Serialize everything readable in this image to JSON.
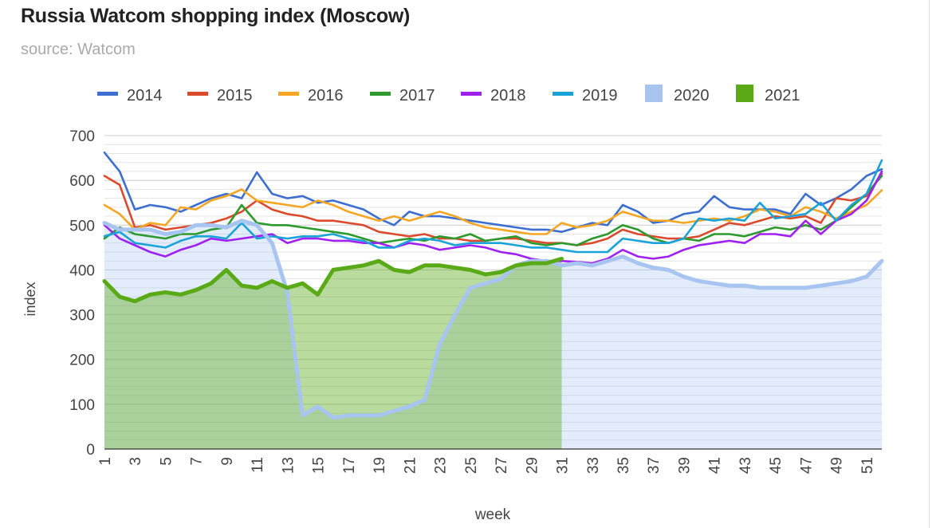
{
  "title": "Russia Watcom shopping index (Moscow)",
  "subtitle": "source: Watcom",
  "chart_data": {
    "type": "line",
    "xlabel": "week",
    "ylabel": "index",
    "ylim": [
      0,
      700
    ],
    "yticks": [
      0,
      100,
      200,
      300,
      400,
      500,
      600,
      700
    ],
    "xlim": [
      1,
      52
    ],
    "xticks": [
      1,
      3,
      5,
      7,
      9,
      11,
      13,
      15,
      17,
      19,
      21,
      23,
      25,
      27,
      29,
      31,
      33,
      35,
      37,
      39,
      41,
      43,
      45,
      47,
      49,
      51
    ],
    "grid": true,
    "legend_position": "top",
    "series": [
      {
        "name": "2014",
        "color": "#3c6fd0",
        "style": "line",
        "x": [
          1,
          2,
          3,
          4,
          5,
          6,
          7,
          8,
          9,
          10,
          11,
          12,
          13,
          14,
          15,
          16,
          17,
          18,
          19,
          20,
          21,
          22,
          23,
          24,
          25,
          26,
          27,
          28,
          29,
          30,
          31,
          32,
          33,
          34,
          35,
          36,
          37,
          38,
          39,
          40,
          41,
          42,
          43,
          44,
          45,
          46,
          47,
          48,
          49,
          50,
          51,
          52
        ],
        "y": [
          662,
          620,
          535,
          545,
          540,
          530,
          545,
          560,
          570,
          560,
          618,
          570,
          560,
          565,
          550,
          555,
          545,
          535,
          515,
          500,
          530,
          520,
          520,
          515,
          510,
          505,
          500,
          495,
          490,
          490,
          485,
          495,
          505,
          500,
          545,
          530,
          505,
          510,
          525,
          530,
          565,
          540,
          535,
          535,
          535,
          525,
          570,
          545,
          560,
          580,
          610,
          625
        ]
      },
      {
        "name": "2015",
        "color": "#dc4a2e",
        "style": "line",
        "x": [
          1,
          2,
          3,
          4,
          5,
          6,
          7,
          8,
          9,
          10,
          11,
          12,
          13,
          14,
          15,
          16,
          17,
          18,
          19,
          20,
          21,
          22,
          23,
          24,
          25,
          26,
          27,
          28,
          29,
          30,
          31,
          32,
          33,
          34,
          35,
          36,
          37,
          38,
          39,
          40,
          41,
          42,
          43,
          44,
          45,
          46,
          47,
          48,
          49,
          50,
          51,
          52
        ],
        "y": [
          610,
          590,
          495,
          500,
          490,
          495,
          500,
          505,
          515,
          530,
          555,
          535,
          525,
          520,
          510,
          510,
          505,
          500,
          485,
          480,
          475,
          480,
          470,
          470,
          465,
          465,
          470,
          470,
          465,
          460,
          460,
          455,
          460,
          470,
          490,
          480,
          475,
          470,
          470,
          475,
          490,
          505,
          500,
          510,
          520,
          515,
          520,
          505,
          560,
          555,
          565,
          615
        ]
      },
      {
        "name": "2016",
        "color": "#f5a623",
        "style": "line",
        "x": [
          1,
          2,
          3,
          4,
          5,
          6,
          7,
          8,
          9,
          10,
          11,
          12,
          13,
          14,
          15,
          16,
          17,
          18,
          19,
          20,
          21,
          22,
          23,
          24,
          25,
          26,
          27,
          28,
          29,
          30,
          31,
          32,
          33,
          34,
          35,
          36,
          37,
          38,
          39,
          40,
          41,
          42,
          43,
          44,
          45,
          46,
          47,
          48,
          49,
          50,
          51,
          52
        ],
        "y": [
          545,
          525,
          490,
          505,
          500,
          540,
          535,
          555,
          565,
          580,
          555,
          550,
          545,
          540,
          555,
          545,
          530,
          520,
          510,
          520,
          510,
          520,
          530,
          520,
          505,
          495,
          490,
          485,
          480,
          480,
          505,
          495,
          500,
          510,
          530,
          520,
          510,
          510,
          505,
          510,
          515,
          510,
          520,
          535,
          530,
          520,
          540,
          530,
          515,
          530,
          545,
          578
        ]
      },
      {
        "name": "2017",
        "color": "#2c9a2c",
        "style": "line",
        "x": [
          1,
          2,
          3,
          4,
          5,
          6,
          7,
          8,
          9,
          10,
          11,
          12,
          13,
          14,
          15,
          16,
          17,
          18,
          19,
          20,
          21,
          22,
          23,
          24,
          25,
          26,
          27,
          28,
          29,
          30,
          31,
          32,
          33,
          34,
          35,
          36,
          37,
          38,
          39,
          40,
          41,
          42,
          43,
          44,
          45,
          46,
          47,
          48,
          49,
          50,
          51,
          52
        ],
        "y": [
          470,
          495,
          480,
          475,
          470,
          480,
          480,
          490,
          495,
          545,
          505,
          500,
          500,
          495,
          490,
          485,
          480,
          470,
          460,
          465,
          470,
          465,
          475,
          470,
          480,
          465,
          470,
          475,
          460,
          455,
          460,
          455,
          470,
          480,
          500,
          490,
          470,
          460,
          470,
          465,
          480,
          480,
          475,
          485,
          495,
          490,
          500,
          490,
          510,
          540,
          570,
          610
        ]
      },
      {
        "name": "2018",
        "color": "#a020f0",
        "style": "line",
        "x": [
          1,
          2,
          3,
          4,
          5,
          6,
          7,
          8,
          9,
          10,
          11,
          12,
          13,
          14,
          15,
          16,
          17,
          18,
          19,
          20,
          21,
          22,
          23,
          24,
          25,
          26,
          27,
          28,
          29,
          30,
          31,
          32,
          33,
          34,
          35,
          36,
          37,
          38,
          39,
          40,
          41,
          42,
          43,
          44,
          45,
          46,
          47,
          48,
          49,
          50,
          51,
          52
        ],
        "y": [
          500,
          470,
          455,
          440,
          430,
          445,
          455,
          470,
          465,
          470,
          475,
          480,
          460,
          470,
          470,
          465,
          465,
          460,
          460,
          450,
          460,
          455,
          445,
          450,
          455,
          450,
          440,
          435,
          425,
          420,
          420,
          418,
          415,
          425,
          445,
          430,
          425,
          430,
          445,
          455,
          460,
          465,
          460,
          480,
          480,
          475,
          510,
          480,
          510,
          525,
          555,
          620
        ]
      },
      {
        "name": "2019",
        "color": "#1aa3d8",
        "style": "line",
        "x": [
          1,
          2,
          3,
          4,
          5,
          6,
          7,
          8,
          9,
          10,
          11,
          12,
          13,
          14,
          15,
          16,
          17,
          18,
          19,
          20,
          21,
          22,
          23,
          24,
          25,
          26,
          27,
          28,
          29,
          30,
          31,
          32,
          33,
          34,
          35,
          36,
          37,
          38,
          39,
          40,
          41,
          42,
          43,
          44,
          45,
          46,
          47,
          48,
          49,
          50,
          51,
          52
        ],
        "y": [
          475,
          485,
          460,
          455,
          450,
          465,
          475,
          475,
          470,
          505,
          470,
          475,
          470,
          475,
          475,
          480,
          470,
          465,
          450,
          450,
          465,
          470,
          465,
          455,
          460,
          460,
          460,
          455,
          450,
          450,
          445,
          440,
          440,
          440,
          470,
          465,
          460,
          460,
          470,
          515,
          510,
          515,
          510,
          550,
          515,
          520,
          525,
          550,
          510,
          545,
          570,
          645
        ]
      },
      {
        "name": "2020",
        "color": "#a8c4f0",
        "style": "area",
        "x": [
          1,
          2,
          3,
          4,
          5,
          6,
          7,
          8,
          9,
          10,
          11,
          12,
          13,
          14,
          15,
          16,
          17,
          18,
          19,
          20,
          21,
          22,
          23,
          24,
          25,
          26,
          27,
          28,
          29,
          30,
          31,
          32,
          33,
          34,
          35,
          36,
          37,
          38,
          39,
          40,
          41,
          42,
          43,
          44,
          45,
          46,
          47,
          48,
          49,
          50,
          51,
          52
        ],
        "y": [
          505,
          490,
          490,
          490,
          480,
          485,
          500,
          500,
          495,
          510,
          500,
          460,
          350,
          75,
          95,
          70,
          75,
          75,
          75,
          85,
          95,
          110,
          235,
          300,
          360,
          370,
          380,
          410,
          420,
          420,
          410,
          415,
          410,
          420,
          430,
          415,
          405,
          400,
          385,
          375,
          370,
          365,
          365,
          360,
          360,
          360,
          360,
          365,
          370,
          375,
          385,
          420
        ]
      },
      {
        "name": "2021",
        "color": "#5aaa18",
        "style": "area",
        "x": [
          1,
          2,
          3,
          4,
          5,
          6,
          7,
          8,
          9,
          10,
          11,
          12,
          13,
          14,
          15,
          16,
          17,
          18,
          19,
          20,
          21,
          22,
          23,
          24,
          25,
          26,
          27,
          28,
          29,
          30,
          31
        ],
        "y": [
          375,
          340,
          330,
          345,
          350,
          345,
          355,
          370,
          400,
          365,
          360,
          375,
          360,
          370,
          345,
          400,
          405,
          410,
          420,
          400,
          395,
          410,
          410,
          405,
          400,
          390,
          395,
          410,
          415,
          415,
          425
        ]
      }
    ]
  }
}
